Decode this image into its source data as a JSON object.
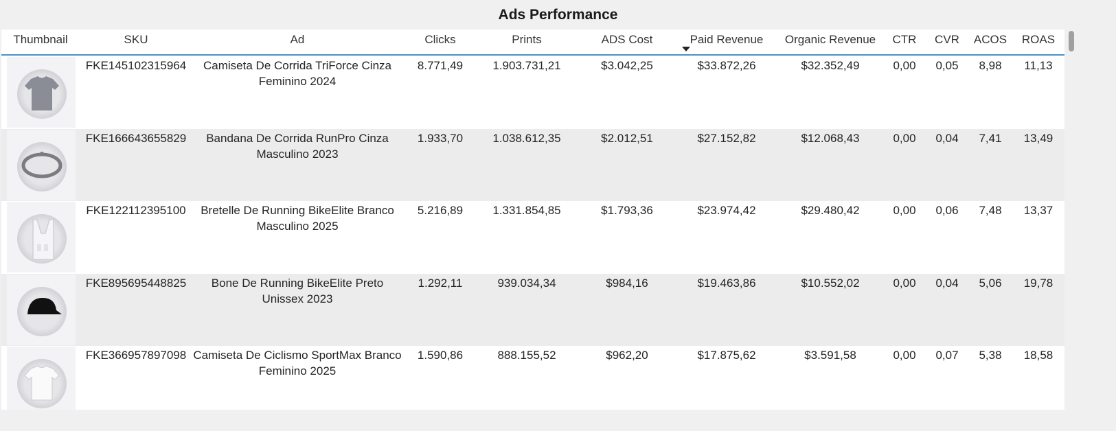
{
  "title": "Ads Performance",
  "table": {
    "columns": [
      "Thumbnail",
      "SKU",
      "Ad",
      "Clicks",
      "Prints",
      "ADS Cost",
      "Paid Revenue",
      "Organic Revenue",
      "CTR",
      "CVR",
      "ACOS",
      "ROAS"
    ],
    "rows": [
      [
        "FKE145102315964",
        "Camiseta De Corrida TriForce Cinza Feminino 2024",
        "8.771,49",
        "1.903.731,21",
        "$3.042,25",
        "$33.872,26",
        "$32.352,49",
        "0,00",
        "0,05",
        "8,98",
        "11,13"
      ],
      [
        "FKE166643655829",
        "Bandana De Corrida RunPro Cinza Masculino 2023",
        "1.933,70",
        "1.038.612,35",
        "$2.012,51",
        "$27.152,82",
        "$12.068,43",
        "0,00",
        "0,04",
        "7,41",
        "13,49"
      ],
      [
        "FKE122112395100",
        "Bretelle De Running BikeElite Branco Masculino 2025",
        "5.216,89",
        "1.331.854,85",
        "$1.793,36",
        "$23.974,42",
        "$29.480,42",
        "0,00",
        "0,06",
        "7,48",
        "13,37"
      ],
      [
        "FKE895695448825",
        "Bone De Running BikeElite Preto Unissex 2023",
        "1.292,11",
        "939.034,34",
        "$984,16",
        "$19.463,86",
        "$10.552,02",
        "0,00",
        "0,04",
        "5,06",
        "19,78"
      ],
      [
        "FKE366957897098",
        "Camiseta De Ciclismo SportMax Branco Feminino 2025",
        "1.590,86",
        "888.155,52",
        "$962,20",
        "$17.875,62",
        "$3.591,58",
        "0,00",
        "0,07",
        "5,38",
        "18,58"
      ]
    ]
  }
}
